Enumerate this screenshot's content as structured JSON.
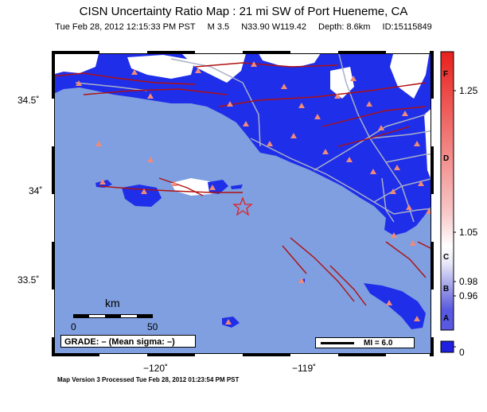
{
  "map": {
    "title": "CISN Uncertainty Ratio Map : 21 mi SW of Port Hueneme, CA",
    "event": {
      "datetime": "Tue Feb 28, 2012 12:15:33 PM PST",
      "magnitude": "M 3.5",
      "location": "N33.90 W119.42",
      "depth": "Depth: 8.6km",
      "id": "ID:15115849"
    },
    "lat_labels": [
      "34.5˚",
      "34˚",
      "33.5˚"
    ],
    "lon_labels": [
      "−120˚",
      "−119˚"
    ],
    "scale": {
      "unit": "km",
      "start": "0",
      "end": "50"
    },
    "grade_label": "GRADE: – (Mean sigma: –)",
    "mi_label": "MI = 6.0",
    "footer": "Map Version 3 Processed Tue Feb 28, 2012 01:23:54 PM PST",
    "colors": {
      "ocean": "#7f9fe0",
      "land_high": "#1f2ee8",
      "land_low": "#ffffff",
      "fault": "#b01010",
      "roads": "#a9b0c8",
      "station": "#f08a7a",
      "epicenter": "#e02020"
    }
  },
  "colorbar": {
    "letters": [
      "F",
      "D",
      "C",
      "B",
      "A"
    ],
    "ticks": [
      "1.25",
      "1.05",
      "0.98",
      "0.96",
      "0"
    ],
    "colors": [
      "#e8201c",
      "#ffffff",
      "#2020e0"
    ]
  }
}
